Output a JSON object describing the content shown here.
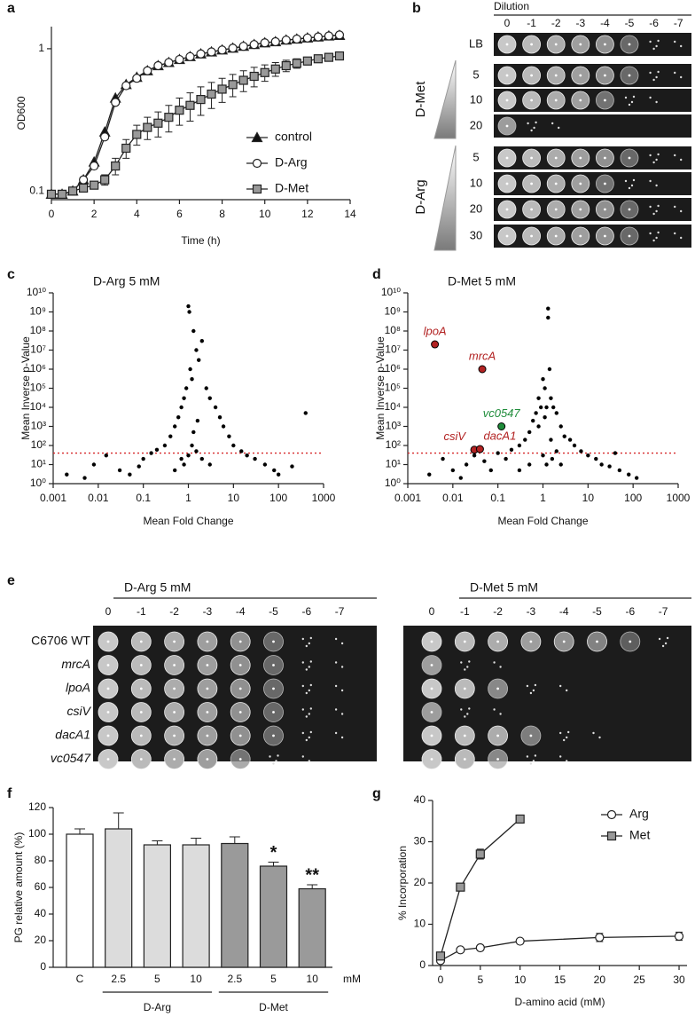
{
  "panel_labels": [
    "a",
    "b",
    "c",
    "d",
    "e",
    "f",
    "g"
  ],
  "chart_data": [
    {
      "type": "line",
      "xlabel": "Time (h)",
      "ylabel": "OD600",
      "ylog": true,
      "x": [
        0,
        0.5,
        1,
        1.5,
        2,
        2.5,
        3,
        3.5,
        4,
        4.5,
        5,
        5.5,
        6,
        6.5,
        7,
        7.5,
        8,
        8.5,
        9,
        9.5,
        10,
        10.5,
        11,
        11.5,
        12,
        12.5,
        13,
        13.5
      ],
      "xlim": [
        0,
        14
      ],
      "xticks": [
        0,
        2,
        4,
        6,
        8,
        10,
        12,
        14
      ],
      "ylim": [
        0.087,
        1.43
      ],
      "yticks": [
        0.1,
        1
      ],
      "legend": "lower right",
      "series": [
        {
          "name": "control",
          "marker": "triangle",
          "color": "#111111",
          "values": [
            0.095,
            0.095,
            0.1,
            0.12,
            0.16,
            0.26,
            0.45,
            0.56,
            0.63,
            0.7,
            0.76,
            0.8,
            0.84,
            0.88,
            0.92,
            0.95,
            0.98,
            1.01,
            1.04,
            1.07,
            1.1,
            1.12,
            1.15,
            1.17,
            1.19,
            1.21,
            1.23,
            1.24
          ]
        },
        {
          "name": "D-Arg",
          "marker": "circle",
          "color": "#ffffff",
          "values": [
            0.095,
            0.095,
            0.1,
            0.12,
            0.15,
            0.24,
            0.42,
            0.55,
            0.62,
            0.7,
            0.76,
            0.8,
            0.84,
            0.88,
            0.92,
            0.95,
            0.98,
            1.01,
            1.04,
            1.07,
            1.1,
            1.12,
            1.15,
            1.17,
            1.19,
            1.21,
            1.23,
            1.25
          ]
        },
        {
          "name": "D-Met",
          "marker": "square",
          "color": "#999999",
          "values": [
            0.095,
            0.095,
            0.1,
            0.105,
            0.11,
            0.12,
            0.15,
            0.2,
            0.25,
            0.28,
            0.3,
            0.33,
            0.37,
            0.4,
            0.44,
            0.48,
            0.52,
            0.56,
            0.6,
            0.64,
            0.68,
            0.72,
            0.76,
            0.79,
            0.82,
            0.85,
            0.87,
            0.89
          ],
          "errors": [
            0,
            0,
            0,
            0,
            0.005,
            0.01,
            0.02,
            0.03,
            0.04,
            0.05,
            0.06,
            0.07,
            0.08,
            0.09,
            0.1,
            0.1,
            0.1,
            0.1,
            0.1,
            0.1,
            0.09,
            0.08,
            0.07,
            0.06,
            0.05,
            0.05,
            0.04,
            0.04
          ]
        }
      ]
    },
    {
      "type": "scatter",
      "title": "D-Arg 5 mM",
      "xlabel": "Mean Fold Change",
      "ylabel": "Mean Inverse p-Value",
      "xlog": true,
      "ylog": true,
      "color": "#000000",
      "xlim": [
        0.001,
        1000
      ],
      "xticks": [
        0.001,
        0.01,
        0.1,
        1,
        10,
        100,
        1000
      ],
      "ylim": [
        1,
        10000000000.0
      ],
      "yticks": [
        {
          "value": 1,
          "label": "10⁰"
        },
        {
          "value": 10,
          "label": "10¹"
        },
        {
          "value": 100,
          "label": "10²"
        },
        {
          "value": 1000,
          "label": "10³"
        },
        {
          "value": 10000,
          "label": "10⁴"
        },
        {
          "value": 100000,
          "label": "10⁵"
        },
        {
          "value": 1000000,
          "label": "10⁶"
        },
        {
          "value": 10000000.0,
          "label": "10⁷"
        },
        {
          "value": 100000000.0,
          "label": "10⁸"
        },
        {
          "value": 1000000000.0,
          "label": "10⁹"
        },
        {
          "value": 10000000000.0,
          "label": "10¹⁰"
        }
      ],
      "reference_line": {
        "value": 40,
        "color": "#d62728"
      },
      "x": [
        0.002,
        0.005,
        0.008,
        0.015,
        0.03,
        0.05,
        0.08,
        0.1,
        0.15,
        0.2,
        0.3,
        0.4,
        0.5,
        0.6,
        0.7,
        0.8,
        0.9,
        1,
        1.05,
        1.1,
        1.2,
        1.3,
        1.5,
        1.7,
        2,
        2.5,
        3,
        4,
        5,
        6,
        8,
        10,
        15,
        20,
        30,
        50,
        80,
        100,
        200,
        400,
        1,
        1.5,
        0.8,
        1.2,
        2,
        3,
        0.5,
        0.7,
        1.3,
        1.6
      ],
      "values": [
        3,
        2,
        10,
        30,
        5,
        3,
        8,
        20,
        40,
        60,
        100,
        300,
        1000,
        3000,
        10000.0,
        30000.0,
        100000.0,
        2000000000.0,
        1000000000.0,
        1000000.0,
        300000.0,
        100000000.0,
        10000000.0,
        3000000.0,
        30000000.0,
        100000.0,
        30000.0,
        10000.0,
        3000.0,
        1000.0,
        300,
        100,
        50,
        30,
        20,
        10,
        5,
        3,
        8,
        5000.0,
        30,
        50,
        10,
        100,
        20,
        10,
        5,
        20,
        500,
        2000
      ]
    },
    {
      "type": "scatter",
      "title": "D-Met 5 mM",
      "xlabel": "Mean Fold Change",
      "ylabel": "Mean Inverse p-Value",
      "xlog": true,
      "ylog": true,
      "color": "#000000",
      "xlim": [
        0.001,
        1000
      ],
      "xticks": [
        0.001,
        0.01,
        0.1,
        1,
        10,
        100,
        1000
      ],
      "ylim": [
        1,
        10000000000.0
      ],
      "yticks": [
        {
          "value": 1,
          "label": "10⁰"
        },
        {
          "value": 10,
          "label": "10¹"
        },
        {
          "value": 100,
          "label": "10²"
        },
        {
          "value": 1000,
          "label": "10³"
        },
        {
          "value": 10000,
          "label": "10⁴"
        },
        {
          "value": 100000,
          "label": "10⁵"
        },
        {
          "value": 1000000,
          "label": "10⁶"
        },
        {
          "value": 10000000.0,
          "label": "10⁷"
        },
        {
          "value": 100000000.0,
          "label": "10⁸"
        },
        {
          "value": 1000000000.0,
          "label": "10⁹"
        },
        {
          "value": 10000000000.0,
          "label": "10¹⁰"
        }
      ],
      "reference_line": {
        "value": 40,
        "color": "#d62728"
      },
      "x": [
        0.003,
        0.006,
        0.01,
        0.015,
        0.02,
        0.03,
        0.05,
        0.07,
        0.1,
        0.15,
        0.2,
        0.3,
        0.4,
        0.5,
        0.6,
        0.7,
        0.8,
        0.9,
        1,
        1.1,
        1.2,
        1.3,
        1.3,
        1.4,
        1.5,
        1.7,
        2,
        2.5,
        3,
        4,
        5,
        7,
        10,
        15,
        20,
        30,
        50,
        80,
        120,
        0.8,
        1,
        1.2,
        1.5,
        2,
        0.5,
        0.3,
        1.1,
        1.6,
        2.5,
        40
      ],
      "values": [
        3,
        20,
        5,
        2,
        10,
        30,
        15,
        5,
        40,
        20,
        60,
        100,
        200,
        500,
        2000,
        5000,
        30000.0,
        10000.0,
        300000.0,
        100000.0,
        10000.0,
        1500000000.0,
        500000000.0,
        1000000.0,
        30000.0,
        10000.0,
        5000.0,
        1000.0,
        300,
        200,
        100,
        50,
        30,
        20,
        10,
        8,
        5,
        3,
        2,
        1000,
        30,
        10,
        200,
        50,
        10,
        5,
        3000,
        20,
        10,
        40
      ],
      "annotations": [
        {
          "text": "lpoA",
          "x": 0.004,
          "y": 20000000.0,
          "color": "#b22222"
        },
        {
          "text": "mrcA",
          "x": 0.045,
          "y": 1000000.0,
          "color": "#b22222"
        },
        {
          "text": "vc0547",
          "x": 0.12,
          "y": 1000,
          "color": "#1e8c3a"
        },
        {
          "text": "csiV",
          "x": 0.03,
          "y": 60,
          "color": "#b22222"
        },
        {
          "text": "dacA1",
          "x": 0.04,
          "y": 65,
          "color": "#b22222"
        }
      ]
    },
    {
      "type": "bar",
      "ylabel": "PG relative amount (%)",
      "unit_label": "mM",
      "categories": [
        "C",
        "2.5",
        "5",
        "10",
        "2.5",
        "5",
        "10"
      ],
      "values": [
        100,
        104,
        92,
        92,
        93,
        76,
        59
      ],
      "errors": [
        4,
        12,
        3,
        5,
        5,
        3,
        3
      ],
      "colors": [
        "#ffffff",
        "#dcdcdc",
        "#dcdcdc",
        "#dcdcdc",
        "#9a9a9a",
        "#9a9a9a",
        "#9a9a9a"
      ],
      "significance": [
        null,
        null,
        null,
        null,
        null,
        "*",
        "**"
      ],
      "group_labels": [
        "D-Arg",
        "D-Met"
      ],
      "ylim": [
        0,
        120
      ],
      "yticks": [
        0,
        20,
        40,
        60,
        80,
        100,
        120
      ]
    },
    {
      "type": "line",
      "xlabel": "D-amino acid (mM)",
      "ylabel": "% Incorporation",
      "legend": "upper right",
      "xlim": [
        -1,
        31
      ],
      "xticks": [
        0,
        5,
        10,
        15,
        20,
        25,
        30
      ],
      "ylim": [
        0,
        40
      ],
      "yticks": [
        0,
        10,
        20,
        30,
        40
      ],
      "series": [
        {
          "name": "Arg",
          "marker": "circle",
          "color": "#ffffff",
          "x": [
            0,
            2.5,
            5,
            10,
            20,
            30
          ],
          "values": [
            1.2,
            3.8,
            4.3,
            5.9,
            6.8,
            7.1
          ],
          "errors": [
            0.3,
            0.3,
            0.5,
            0.5,
            1,
            1
          ]
        },
        {
          "name": "Met",
          "marker": "square",
          "color": "#999999",
          "x": [
            0,
            2.5,
            5,
            10
          ],
          "values": [
            2.3,
            19,
            27,
            35.5
          ],
          "errors": [
            0.5,
            0.5,
            1.2,
            0.8
          ]
        }
      ]
    }
  ],
  "spot_assay_b": {
    "header": "Dilution",
    "dilutions": [
      "0",
      "-1",
      "-2",
      "-3",
      "-4",
      "-5",
      "-6",
      "-7"
    ],
    "rows": [
      "LB",
      "5",
      "10",
      "20",
      "5",
      "10",
      "20",
      "30"
    ],
    "groups": [
      "D-Met",
      "D-Arg"
    ]
  },
  "spot_assay_e": {
    "panels": [
      {
        "title": "D-Arg 5 mM",
        "dilutions": [
          "0",
          "-1",
          "-2",
          "-3",
          "-4",
          "-5",
          "-6",
          "-7"
        ]
      },
      {
        "title": "D-Met 5 mM",
        "dilutions": [
          "0",
          "-1",
          "-2",
          "-3",
          "-4",
          "-5",
          "-6",
          "-7"
        ]
      }
    ],
    "strains": [
      "C6706 WT",
      "mrcA",
      "lpoA",
      "csiV",
      "dacA1",
      "vc0547"
    ]
  }
}
